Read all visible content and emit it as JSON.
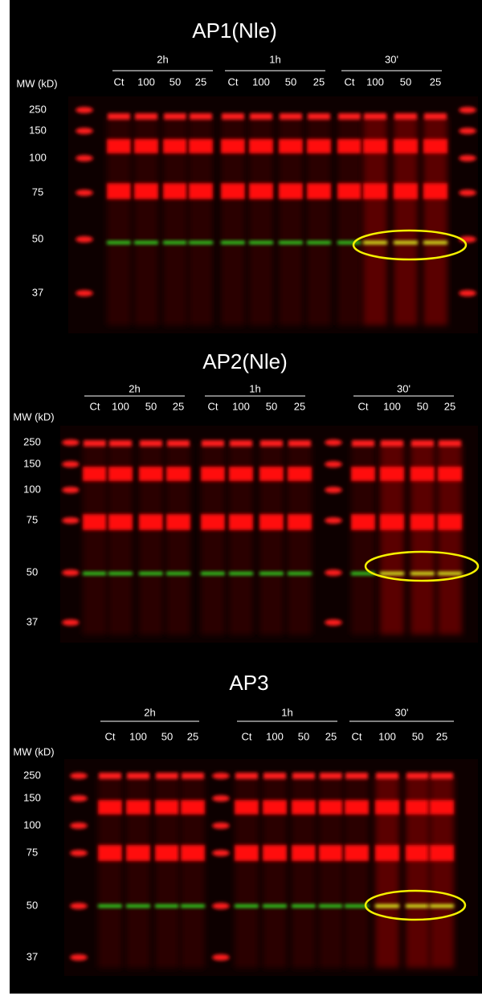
{
  "panels": [
    {
      "title": "AP1(Nle)",
      "mw_label": "MW (kD)",
      "mw_markers": [
        "250",
        "150",
        "100",
        "75",
        "50",
        "37"
      ],
      "groups": [
        {
          "label": "2h",
          "lanes": [
            "Ct",
            "100",
            "50",
            "25"
          ]
        },
        {
          "label": "1h",
          "lanes": [
            "Ct",
            "100",
            "50",
            "25"
          ]
        },
        {
          "label": "30'",
          "lanes": [
            "Ct",
            "100",
            "50",
            "25"
          ]
        }
      ]
    },
    {
      "title": "AP2(Nle)",
      "mw_label": "MW (kD)",
      "mw_markers": [
        "250",
        "150",
        "100",
        "75",
        "50",
        "37"
      ],
      "groups": [
        {
          "label": "2h",
          "lanes": [
            "Ct",
            "100",
            "50",
            "25"
          ]
        },
        {
          "label": "1h",
          "lanes": [
            "Ct",
            "100",
            "50",
            "25"
          ]
        },
        {
          "label": "30'",
          "lanes": [
            "Ct",
            "100",
            "50",
            "25"
          ]
        }
      ]
    },
    {
      "title": "AP3",
      "mw_label": "MW (kD)",
      "mw_markers": [
        "250",
        "150",
        "100",
        "75",
        "50",
        "37"
      ],
      "groups": [
        {
          "label": "2h",
          "lanes": [
            "Ct",
            "100",
            "50",
            "25"
          ]
        },
        {
          "label": "1h",
          "lanes": [
            "Ct",
            "100",
            "50",
            "25"
          ]
        },
        {
          "label": "30'",
          "lanes": [
            "Ct",
            "100",
            "50",
            "25"
          ]
        }
      ]
    }
  ]
}
